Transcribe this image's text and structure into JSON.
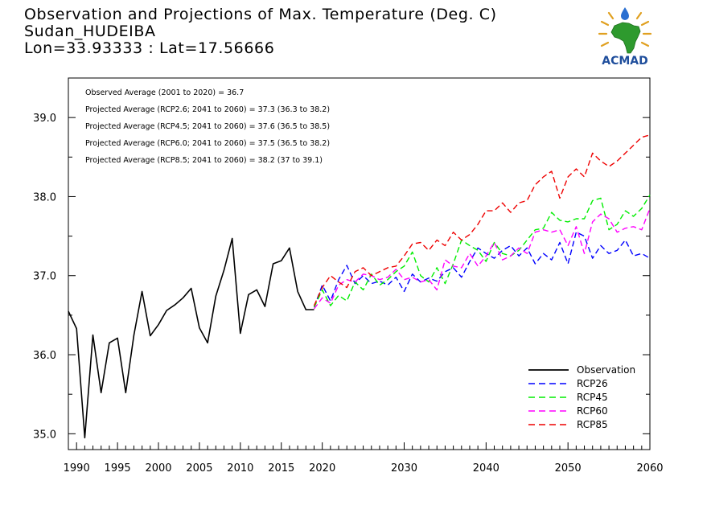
{
  "header": {
    "title": "Observation and Projections of Max. Temperature (Deg. C)",
    "station": "Sudan_HUDEIBA",
    "coords": "Lon=33.93333 : Lat=17.56666"
  },
  "logo": {
    "text": "ACMAD",
    "icon": "acmad-africa-sun-logo"
  },
  "chart_data": {
    "type": "line",
    "title": "Observation and Projections of Max. Temperature (Deg. C)",
    "xlim": [
      1989,
      2060
    ],
    "ylim": [
      34.8,
      39.5
    ],
    "x_ticks": [
      1990,
      1995,
      2000,
      2005,
      2010,
      2015,
      2020,
      2030,
      2040,
      2050,
      2060
    ],
    "x_tick_labels": [
      "1990",
      "1995",
      "2000",
      "2005",
      "2010",
      "2015",
      "2020",
      "2030",
      "2040",
      "2050",
      "2060"
    ],
    "y_ticks": [
      35.0,
      36.0,
      37.0,
      38.0,
      39.0
    ],
    "y_tick_labels": [
      "35.0",
      "36.0",
      "37.0",
      "38.0",
      "39.0"
    ],
    "annotations": [
      "Observed Average (2001 to 2020) = 36.7",
      "Projected Average (RCP2.6; 2041 to 2060) = 37.3 (36.3 to 38.2)",
      "Projected Average (RCP4.5; 2041 to 2060) = 37.6 (36.5 to 38.5)",
      "Projected Average (RCP6.0; 2041 to 2060) = 37.5 (36.5 to 38.2)",
      "Projected Average (RCP8.5; 2041 to 2060) = 38.2 (37 to 39.1)"
    ],
    "legend_position": "bottom-right",
    "series": [
      {
        "name": "Observation",
        "color": "#000000",
        "dashed": false,
        "x": [
          1989,
          1990,
          1991,
          1992,
          1993,
          1994,
          1995,
          1996,
          1997,
          1998,
          1999,
          2000,
          2001,
          2002,
          2003,
          2004,
          2005,
          2006,
          2007,
          2008,
          2009,
          2010,
          2011,
          2012,
          2013,
          2014,
          2015,
          2016,
          2017,
          2018,
          2019
        ],
        "values": [
          36.55,
          36.33,
          34.95,
          36.25,
          35.52,
          36.15,
          36.21,
          35.52,
          36.25,
          36.8,
          36.24,
          36.38,
          36.56,
          36.63,
          36.72,
          36.84,
          36.34,
          36.15,
          36.74,
          37.07,
          37.47,
          36.27,
          36.76,
          36.82,
          36.61,
          37.15,
          37.19,
          37.35,
          36.8,
          36.57,
          36.57
        ]
      },
      {
        "name": "RCP26",
        "color": "#0000ff",
        "dashed": true,
        "x": [
          2019,
          2020,
          2021,
          2022,
          2023,
          2024,
          2025,
          2026,
          2027,
          2028,
          2029,
          2030,
          2031,
          2032,
          2033,
          2034,
          2035,
          2036,
          2037,
          2038,
          2039,
          2040,
          2041,
          2042,
          2043,
          2044,
          2045,
          2046,
          2047,
          2048,
          2049,
          2050,
          2051,
          2052,
          2053,
          2054,
          2055,
          2056,
          2057,
          2058,
          2059,
          2060
        ],
        "values": [
          36.6,
          36.88,
          36.68,
          36.95,
          37.13,
          36.9,
          37.0,
          36.9,
          36.93,
          36.88,
          36.98,
          36.8,
          37.02,
          36.92,
          36.97,
          36.93,
          37.05,
          37.1,
          36.98,
          37.18,
          37.35,
          37.28,
          37.22,
          37.32,
          37.38,
          37.25,
          37.35,
          37.15,
          37.28,
          37.2,
          37.42,
          37.15,
          37.55,
          37.5,
          37.22,
          37.38,
          37.28,
          37.32,
          37.45,
          37.25,
          37.28,
          37.22
        ]
      },
      {
        "name": "RCP45",
        "color": "#00ee00",
        "dashed": true,
        "x": [
          2019,
          2020,
          2021,
          2022,
          2023,
          2024,
          2025,
          2026,
          2027,
          2028,
          2029,
          2030,
          2031,
          2032,
          2033,
          2034,
          2035,
          2036,
          2037,
          2038,
          2039,
          2040,
          2041,
          2042,
          2043,
          2044,
          2045,
          2046,
          2047,
          2048,
          2049,
          2050,
          2051,
          2052,
          2053,
          2054,
          2055,
          2056,
          2057,
          2058,
          2059,
          2060
        ],
        "values": [
          36.6,
          36.82,
          36.62,
          36.75,
          36.68,
          36.92,
          36.82,
          37.02,
          36.88,
          36.95,
          37.05,
          37.12,
          37.3,
          37.0,
          36.92,
          37.1,
          36.9,
          37.15,
          37.45,
          37.38,
          37.32,
          37.18,
          37.42,
          37.28,
          37.25,
          37.32,
          37.45,
          37.58,
          37.6,
          37.8,
          37.7,
          37.68,
          37.72,
          37.72,
          37.95,
          37.98,
          37.58,
          37.65,
          37.82,
          37.75,
          37.85,
          38.02
        ]
      },
      {
        "name": "RCP60",
        "color": "#ff00ff",
        "dashed": true,
        "x": [
          2019,
          2020,
          2021,
          2022,
          2023,
          2024,
          2025,
          2026,
          2027,
          2028,
          2029,
          2030,
          2031,
          2032,
          2033,
          2034,
          2035,
          2036,
          2037,
          2038,
          2039,
          2040,
          2041,
          2042,
          2043,
          2044,
          2045,
          2046,
          2047,
          2048,
          2049,
          2050,
          2051,
          2052,
          2053,
          2054,
          2055,
          2056,
          2057,
          2058,
          2059,
          2060
        ],
        "values": [
          36.58,
          36.72,
          36.65,
          36.88,
          36.95,
          36.92,
          37.02,
          37.0,
          36.95,
          36.98,
          37.08,
          36.95,
          36.98,
          36.92,
          36.95,
          36.82,
          37.2,
          37.12,
          37.1,
          37.28,
          37.12,
          37.25,
          37.42,
          37.2,
          37.25,
          37.35,
          37.28,
          37.55,
          37.58,
          37.55,
          37.58,
          37.38,
          37.62,
          37.28,
          37.68,
          37.78,
          37.72,
          37.55,
          37.6,
          37.62,
          37.58,
          37.85
        ]
      },
      {
        "name": "RCP85",
        "color": "#ee0000",
        "dashed": true,
        "x": [
          2019,
          2020,
          2021,
          2022,
          2023,
          2024,
          2025,
          2026,
          2027,
          2028,
          2029,
          2030,
          2031,
          2032,
          2033,
          2034,
          2035,
          2036,
          2037,
          2038,
          2039,
          2040,
          2041,
          2042,
          2043,
          2044,
          2045,
          2046,
          2047,
          2048,
          2049,
          2050,
          2051,
          2052,
          2053,
          2054,
          2055,
          2056,
          2057,
          2058,
          2059,
          2060
        ],
        "values": [
          36.62,
          36.85,
          37.0,
          36.92,
          36.85,
          37.05,
          37.1,
          37.0,
          37.05,
          37.1,
          37.12,
          37.25,
          37.4,
          37.42,
          37.32,
          37.45,
          37.38,
          37.55,
          37.45,
          37.52,
          37.65,
          37.82,
          37.82,
          37.92,
          37.8,
          37.92,
          37.95,
          38.15,
          38.25,
          38.32,
          37.98,
          38.25,
          38.35,
          38.25,
          38.55,
          38.45,
          38.38,
          38.45,
          38.55,
          38.65,
          38.75,
          38.78
        ]
      }
    ]
  }
}
